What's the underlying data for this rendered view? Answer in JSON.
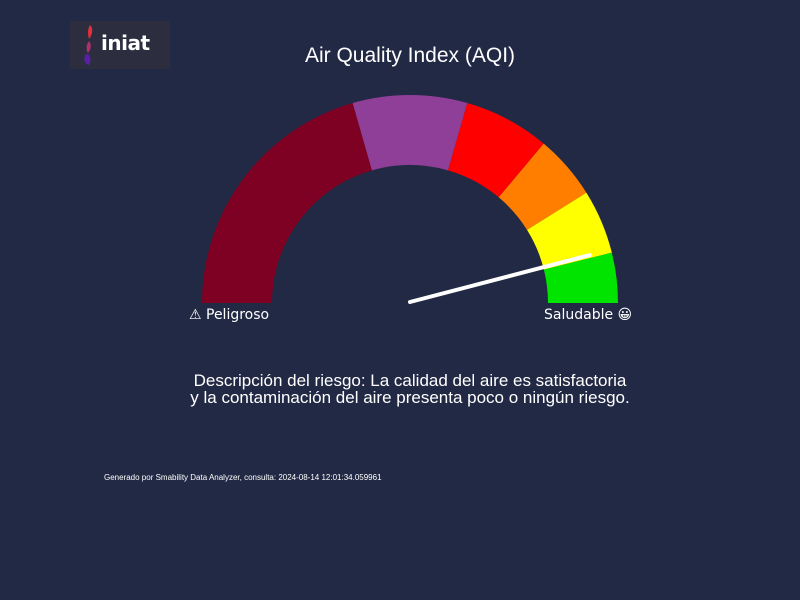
{
  "logo": {
    "text": "iniat",
    "icon": "iniat-flame-logo"
  },
  "title": "Air Quality Index (AQI)",
  "gauge": {
    "bands_left_to_right": [
      {
        "color": "#7e0023"
      },
      {
        "color": "#8f3f97"
      },
      {
        "color": "#ff0000"
      },
      {
        "color": "#ff7e00"
      },
      {
        "color": "#ffff00"
      },
      {
        "color": "#00e400"
      }
    ],
    "needle_fraction_from_right": 0.083,
    "needle_color": "#ffffff"
  },
  "labels": {
    "left": "⚠ Peligroso",
    "right": "Saludable 😀"
  },
  "description": {
    "line1": "Descripción del riesgo: La calidad del aire es satisfactoria",
    "line2": "y la contaminación del aire presenta poco o ningún riesgo."
  },
  "footer": "Generado por Smability Data Analyzer, consulta: 2024-08-14 12:01:34.059961"
}
